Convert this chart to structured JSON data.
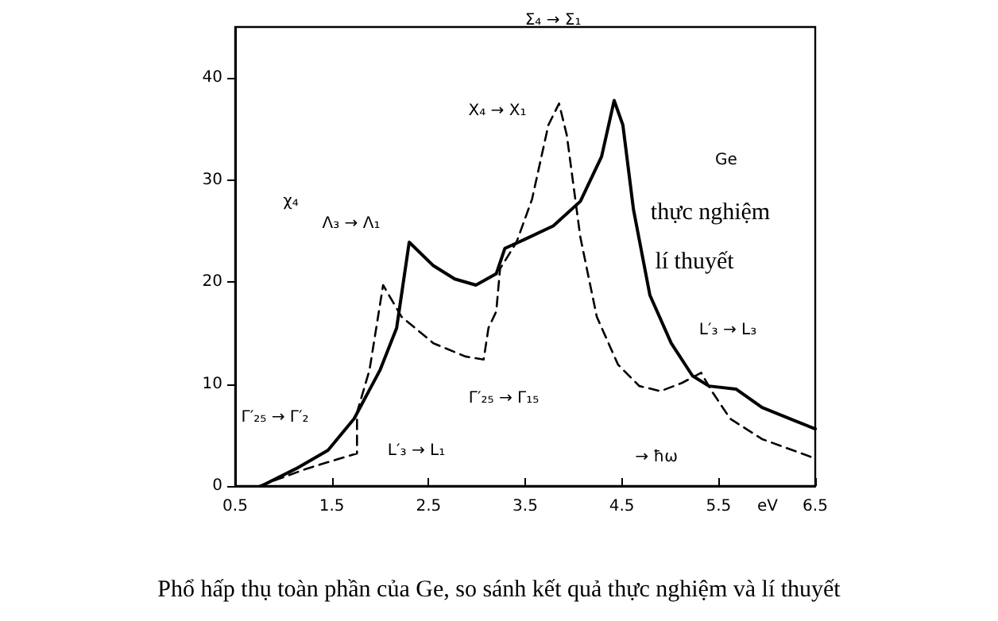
{
  "chart_data": {
    "type": "line",
    "xlabel": "eV",
    "ylabel": "χ₄",
    "xlim": [
      0.5,
      6.5
    ],
    "xticks": [
      0.5,
      1.5,
      2.5,
      3.5,
      4.5,
      5.5,
      6.5
    ],
    "ylim": [
      0,
      45
    ],
    "yticks": [
      0,
      10,
      20,
      30,
      40
    ],
    "grid": false,
    "marker": "none",
    "series": [
      {
        "color": "#000000",
        "line_style": "solid",
        "x": [
          0.77,
          1.13,
          1.46,
          1.73,
          2.0,
          2.17,
          2.3,
          2.55,
          2.77,
          2.99,
          3.2,
          3.29,
          3.5,
          3.79,
          4.07,
          4.29,
          4.42,
          4.51,
          4.62,
          4.79,
          5.01,
          5.23,
          5.4,
          5.68,
          5.95,
          6.29,
          6.5
        ],
        "values": [
          0,
          1.7,
          3.5,
          6.6,
          11.4,
          15.5,
          23.9,
          21.6,
          20.3,
          19.7,
          20.8,
          23.3,
          24.2,
          25.5,
          27.9,
          32.3,
          37.8,
          35.4,
          27.1,
          18.7,
          14.0,
          10.8,
          9.8,
          9.5,
          7.7,
          6.4,
          5.6
        ]
      },
      {
        "color": "#000000",
        "line_style": "dashed",
        "x": [
          0.75,
          1.24,
          1.76,
          1.76,
          1.89,
          2.03,
          2.22,
          2.55,
          2.88,
          3.07,
          3.12,
          3.2,
          3.24,
          3.41,
          3.57,
          3.74,
          3.85,
          3.93,
          4.07,
          4.24,
          4.46,
          4.68,
          4.9,
          5.12,
          5.32,
          5.43,
          5.62,
          5.95,
          6.5
        ],
        "values": [
          0,
          1.7,
          3.2,
          7.2,
          11.4,
          19.7,
          16.6,
          14.0,
          12.7,
          12.4,
          15.5,
          17.1,
          21.3,
          23.9,
          28.1,
          35.4,
          37.5,
          34.4,
          24.4,
          16.6,
          11.9,
          9.8,
          9.3,
          10.1,
          11.1,
          9.3,
          6.6,
          4.6,
          2.7
        ]
      }
    ],
    "annotations": [
      "Γ′₂₅ → Γ′₂",
      "L′₃ → L₁",
      "Λ₃ → Λ₁",
      "X₄ → X₁",
      "Σ₄ → Σ₁",
      "Γ′₂₅ → Γ₁₅",
      "L′₃ → L₃",
      "Ge",
      "thực nghiệm",
      "lí thuyết",
      "→ ħω",
      "Phổ hấp thụ toàn phần của Ge, so sánh kết quả thực nghiệm và lí thuyết"
    ]
  }
}
